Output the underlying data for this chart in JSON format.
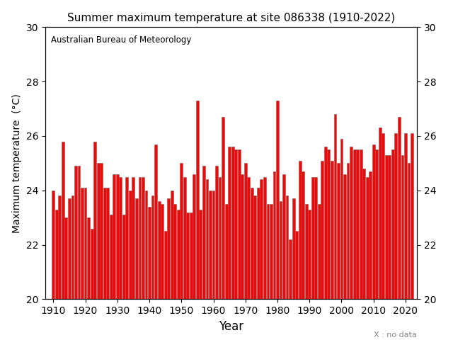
{
  "title": "Summer maximum temperature at site 086338 (1910-2022)",
  "ylabel": "Maximum temperature  (°C)",
  "xlabel": "Year",
  "source_label": "Australian Bureau of Meteorology",
  "note_label": "X : no data",
  "ylim": [
    20,
    30
  ],
  "yticks": [
    20,
    22,
    24,
    26,
    28,
    30
  ],
  "bar_color": "#FF0000",
  "edge_color": "#696969",
  "years": [
    1910,
    1911,
    1912,
    1913,
    1914,
    1915,
    1916,
    1917,
    1918,
    1919,
    1920,
    1921,
    1922,
    1923,
    1924,
    1925,
    1926,
    1927,
    1928,
    1929,
    1930,
    1931,
    1932,
    1933,
    1934,
    1935,
    1936,
    1937,
    1938,
    1939,
    1940,
    1941,
    1942,
    1943,
    1944,
    1945,
    1946,
    1947,
    1948,
    1949,
    1950,
    1951,
    1952,
    1953,
    1954,
    1955,
    1956,
    1957,
    1958,
    1959,
    1960,
    1961,
    1962,
    1963,
    1964,
    1965,
    1966,
    1967,
    1968,
    1969,
    1970,
    1971,
    1972,
    1973,
    1974,
    1975,
    1976,
    1977,
    1978,
    1979,
    1980,
    1981,
    1982,
    1983,
    1984,
    1985,
    1986,
    1987,
    1988,
    1989,
    1990,
    1991,
    1992,
    1993,
    1994,
    1995,
    1996,
    1997,
    1998,
    1999,
    2000,
    2001,
    2002,
    2003,
    2004,
    2005,
    2006,
    2007,
    2008,
    2009,
    2010,
    2011,
    2012,
    2013,
    2014,
    2015,
    2016,
    2017,
    2018,
    2019,
    2020,
    2021,
    2022
  ],
  "values": [
    24.0,
    23.3,
    23.8,
    25.8,
    23.0,
    23.7,
    23.8,
    24.9,
    24.9,
    24.1,
    24.1,
    23.0,
    22.6,
    25.8,
    25.0,
    25.0,
    24.1,
    24.1,
    23.1,
    24.6,
    24.6,
    24.5,
    23.1,
    24.5,
    24.0,
    24.5,
    23.7,
    24.5,
    24.5,
    24.0,
    23.4,
    23.8,
    25.7,
    23.6,
    23.5,
    22.5,
    23.7,
    24.0,
    23.5,
    23.3,
    25.0,
    24.5,
    23.2,
    23.2,
    24.6,
    27.3,
    23.3,
    24.9,
    24.4,
    24.0,
    24.0,
    24.9,
    24.5,
    26.7,
    23.5,
    25.6,
    25.6,
    25.5,
    25.5,
    24.6,
    25.0,
    24.5,
    24.1,
    23.8,
    24.1,
    24.4,
    24.5,
    23.5,
    23.5,
    24.7,
    27.3,
    23.6,
    24.6,
    23.8,
    22.2,
    23.7,
    22.5,
    25.1,
    24.7,
    23.5,
    23.3,
    24.5,
    24.5,
    23.5,
    25.1,
    25.6,
    25.5,
    25.1,
    26.8,
    25.0,
    25.9,
    24.6,
    25.0,
    25.6,
    25.5,
    25.5,
    25.5,
    24.8,
    24.5,
    24.7,
    25.7,
    25.5,
    26.3,
    26.1,
    25.3,
    25.3,
    25.5,
    26.1,
    26.7,
    25.3,
    26.1,
    25.0,
    26.1
  ],
  "xlim": [
    1907.5,
    2023.5
  ],
  "xticks": [
    1910,
    1920,
    1930,
    1940,
    1950,
    1960,
    1970,
    1980,
    1990,
    2000,
    2010,
    2020
  ],
  "bar_baseline": 20
}
